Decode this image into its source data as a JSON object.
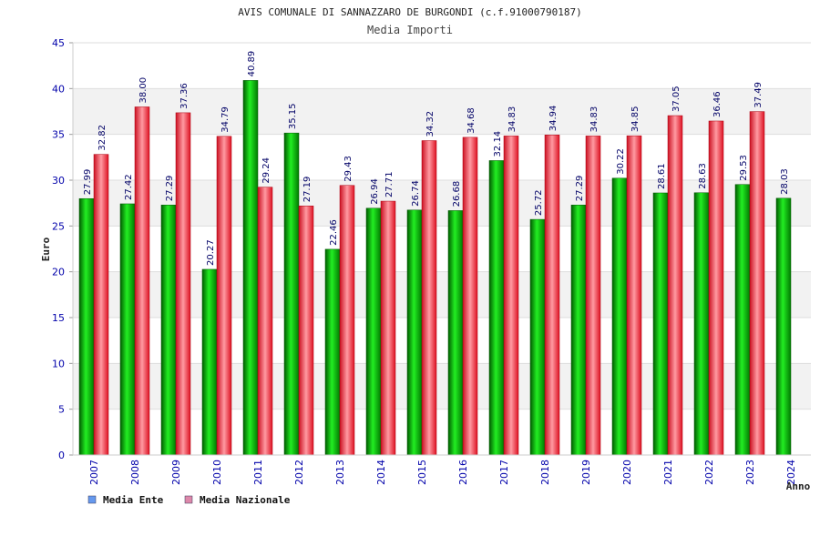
{
  "chart_data": {
    "type": "bar",
    "title": "AVIS COMUNALE DI SANNAZZARO DE BURGONDI (c.f.91000790187)",
    "subtitle": "Media Importi",
    "xlabel": "Anno",
    "ylabel": "Euro",
    "ylim": [
      0,
      45
    ],
    "yticks": [
      0,
      5,
      10,
      15,
      20,
      25,
      30,
      35,
      40,
      45
    ],
    "grid": true,
    "legend_position": "bottom-left",
    "categories": [
      "2007",
      "2008",
      "2009",
      "2010",
      "2011",
      "2012",
      "2013",
      "2014",
      "2015",
      "2016",
      "2017",
      "2018",
      "2019",
      "2020",
      "2021",
      "2022",
      "2023",
      "2024"
    ],
    "series": [
      {
        "name": "Media Ente",
        "color": "#00bb00",
        "values": [
          27.99,
          27.42,
          27.29,
          20.27,
          40.89,
          35.15,
          22.46,
          26.94,
          26.74,
          26.68,
          32.14,
          25.72,
          27.29,
          30.22,
          28.61,
          28.63,
          29.53,
          28.03
        ],
        "labels": [
          "27.99",
          "27.42",
          "27.29",
          "20.27",
          "40.89",
          "35.15",
          "22.46",
          "26.94",
          "26.74",
          "26.68",
          "32.14",
          "25.72",
          "27.29",
          "30.22",
          "28.61",
          "28.63",
          "29.53",
          "28.03"
        ]
      },
      {
        "name": "Media Nazionale",
        "color": "#ee2233",
        "values": [
          32.82,
          38.0,
          37.36,
          34.79,
          29.24,
          27.19,
          29.43,
          27.71,
          34.32,
          34.68,
          34.83,
          34.94,
          34.83,
          34.85,
          37.05,
          36.46,
          37.49,
          null
        ],
        "labels": [
          "32.82",
          "38.00",
          "37.36",
          "34.79",
          "29.24",
          "27.19",
          "29.43",
          "27.71",
          "34.32",
          "34.68",
          "34.83",
          "34.94",
          "34.83",
          "34.85",
          "37.05",
          "36.46",
          "37.49",
          ""
        ]
      }
    ],
    "legend": [
      {
        "name": "Media Ente",
        "swatch_color": "#6699ee"
      },
      {
        "name": "Media Nazionale",
        "swatch_color": "#dd88aa"
      }
    ]
  }
}
